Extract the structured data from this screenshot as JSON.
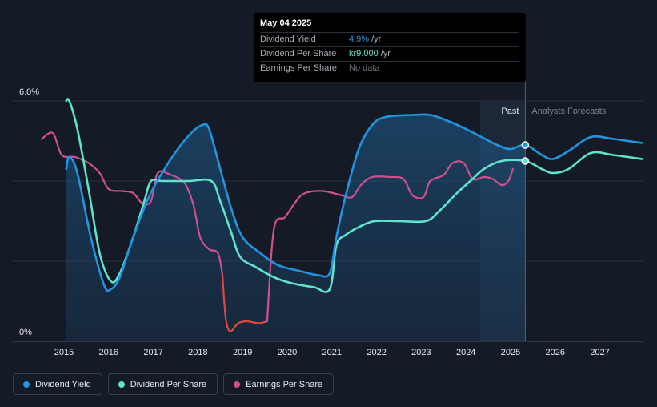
{
  "chart_data": {
    "type": "line",
    "y_axis": {
      "top_label": "6.0%",
      "bottom_label": "0%",
      "ylim": [
        0,
        6.0
      ]
    },
    "x_ticks": [
      "2015",
      "2016",
      "2017",
      "2018",
      "2019",
      "2020",
      "2021",
      "2022",
      "2023",
      "2024",
      "2025",
      "2026",
      "2027"
    ],
    "xlim": [
      2014.45,
      2027.95
    ],
    "section_labels": {
      "past": "Past",
      "forecast": "Analysts Forecasts"
    },
    "forecast_start": 2025.33,
    "shade_start": 2024.32,
    "series": [
      {
        "name": "Dividend Yield",
        "color": "#2394df",
        "points": [
          [
            2015.05,
            4.3
          ],
          [
            2015.12,
            4.6
          ],
          [
            2015.3,
            4.2
          ],
          [
            2015.6,
            2.6
          ],
          [
            2015.9,
            1.4
          ],
          [
            2016.05,
            1.3
          ],
          [
            2016.25,
            1.6
          ],
          [
            2016.55,
            2.6
          ],
          [
            2016.9,
            3.6
          ],
          [
            2017.25,
            4.3
          ],
          [
            2017.55,
            4.8
          ],
          [
            2017.85,
            5.2
          ],
          [
            2018.1,
            5.4
          ],
          [
            2018.25,
            5.3
          ],
          [
            2018.5,
            4.3
          ],
          [
            2018.75,
            3.3
          ],
          [
            2019.0,
            2.6
          ],
          [
            2019.4,
            2.2
          ],
          [
            2019.8,
            1.9
          ],
          [
            2020.3,
            1.75
          ],
          [
            2020.7,
            1.65
          ],
          [
            2020.95,
            1.7
          ],
          [
            2021.1,
            2.6
          ],
          [
            2021.3,
            3.6
          ],
          [
            2021.6,
            4.8
          ],
          [
            2021.9,
            5.4
          ],
          [
            2022.2,
            5.6
          ],
          [
            2022.8,
            5.65
          ],
          [
            2023.2,
            5.65
          ],
          [
            2023.6,
            5.5
          ],
          [
            2024.0,
            5.3
          ],
          [
            2024.35,
            5.1
          ],
          [
            2024.7,
            4.9
          ],
          [
            2025.0,
            4.8
          ],
          [
            2025.33,
            4.9
          ],
          [
            2025.7,
            4.65
          ],
          [
            2025.95,
            4.55
          ],
          [
            2026.3,
            4.75
          ],
          [
            2026.8,
            5.1
          ],
          [
            2027.3,
            5.05
          ],
          [
            2027.95,
            4.95
          ]
        ]
      },
      {
        "name": "Dividend Per Share",
        "color": "#5fe3cb",
        "points": [
          [
            2015.05,
            6.0
          ],
          [
            2015.12,
            6.0
          ],
          [
            2015.3,
            5.3
          ],
          [
            2015.55,
            3.8
          ],
          [
            2015.8,
            2.2
          ],
          [
            2016.05,
            1.5
          ],
          [
            2016.25,
            1.7
          ],
          [
            2016.55,
            2.6
          ],
          [
            2016.8,
            3.5
          ],
          [
            2016.95,
            4.0
          ],
          [
            2017.2,
            4.0
          ],
          [
            2017.8,
            4.0
          ],
          [
            2018.3,
            4.0
          ],
          [
            2018.5,
            3.5
          ],
          [
            2018.75,
            2.7
          ],
          [
            2018.95,
            2.1
          ],
          [
            2019.3,
            1.85
          ],
          [
            2019.7,
            1.6
          ],
          [
            2020.1,
            1.45
          ],
          [
            2020.6,
            1.35
          ],
          [
            2020.95,
            1.3
          ],
          [
            2021.1,
            2.4
          ],
          [
            2021.3,
            2.65
          ],
          [
            2021.6,
            2.85
          ],
          [
            2021.95,
            3.0
          ],
          [
            2022.5,
            3.0
          ],
          [
            2023.1,
            3.0
          ],
          [
            2023.4,
            3.25
          ],
          [
            2023.8,
            3.7
          ],
          [
            2024.1,
            4.0
          ],
          [
            2024.4,
            4.3
          ],
          [
            2024.8,
            4.5
          ],
          [
            2025.33,
            4.5
          ],
          [
            2025.7,
            4.3
          ],
          [
            2025.95,
            4.2
          ],
          [
            2026.3,
            4.3
          ],
          [
            2026.8,
            4.7
          ],
          [
            2027.3,
            4.65
          ],
          [
            2027.95,
            4.55
          ]
        ]
      },
      {
        "name": "Earnings Per Share",
        "color": "#d0508e",
        "points": [
          [
            2014.5,
            5.05
          ],
          [
            2014.75,
            5.2
          ],
          [
            2014.95,
            4.65
          ],
          [
            2015.25,
            4.6
          ],
          [
            2015.55,
            4.45
          ],
          [
            2015.8,
            4.2
          ],
          [
            2016.0,
            3.8
          ],
          [
            2016.3,
            3.75
          ],
          [
            2016.55,
            3.7
          ],
          [
            2016.75,
            3.45
          ],
          [
            2016.95,
            3.5
          ],
          [
            2017.1,
            4.2
          ],
          [
            2017.4,
            4.15
          ],
          [
            2017.7,
            3.95
          ],
          [
            2017.9,
            3.4
          ],
          [
            2018.05,
            2.6
          ],
          [
            2018.25,
            2.3
          ],
          [
            2018.45,
            2.2
          ],
          [
            2018.55,
            1.65
          ],
          [
            2018.62,
            0.6
          ],
          [
            2018.72,
            0.25
          ],
          [
            2018.9,
            0.45
          ],
          [
            2019.1,
            0.5
          ],
          [
            2019.35,
            0.45
          ],
          [
            2019.55,
            0.5
          ],
          [
            2019.7,
            2.8
          ],
          [
            2019.95,
            3.1
          ],
          [
            2020.2,
            3.5
          ],
          [
            2020.4,
            3.7
          ],
          [
            2020.8,
            3.75
          ],
          [
            2021.2,
            3.65
          ],
          [
            2021.45,
            3.6
          ],
          [
            2021.65,
            3.9
          ],
          [
            2021.9,
            4.1
          ],
          [
            2022.3,
            4.1
          ],
          [
            2022.6,
            4.05
          ],
          [
            2022.8,
            3.65
          ],
          [
            2023.05,
            3.6
          ],
          [
            2023.2,
            4.0
          ],
          [
            2023.5,
            4.15
          ],
          [
            2023.7,
            4.45
          ],
          [
            2023.95,
            4.45
          ],
          [
            2024.15,
            4.05
          ],
          [
            2024.4,
            4.1
          ],
          [
            2024.6,
            4.05
          ],
          [
            2024.8,
            3.9
          ],
          [
            2024.95,
            4.0
          ],
          [
            2025.05,
            4.3
          ]
        ]
      }
    ],
    "eps_red_segment": [
      2018.55,
      2019.6
    ],
    "highlight_points": [
      {
        "series": "Dividend Yield",
        "x": 2025.33,
        "y": 4.9
      },
      {
        "series": "Dividend Per Share",
        "x": 2025.33,
        "y": 4.5
      }
    ]
  },
  "tooltip": {
    "date": "May 04 2025",
    "rows": [
      {
        "label": "Dividend Yield",
        "value": "4.9%",
        "unit": "/yr"
      },
      {
        "label": "Dividend Per Share",
        "value": "kr9.000",
        "unit": "/yr"
      },
      {
        "label": "Earnings Per Share",
        "value": "No data"
      }
    ]
  },
  "legend": [
    {
      "label": "Dividend Yield",
      "color": "#2394df"
    },
    {
      "label": "Dividend Per Share",
      "color": "#5fe3cb"
    },
    {
      "label": "Earnings Per Share",
      "color": "#d0508e"
    }
  ]
}
